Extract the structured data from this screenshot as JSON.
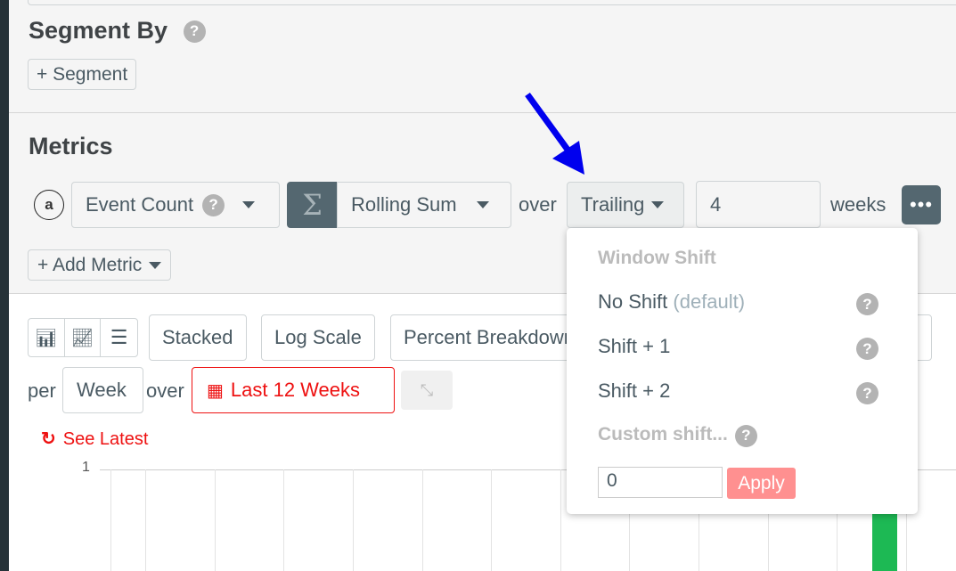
{
  "segment": {
    "title": "Segment By",
    "add_label": "+ Segment"
  },
  "metrics": {
    "title": "Metrics",
    "letter": "a",
    "event": "Event Count",
    "agg_icon": "Σ",
    "agg": "Rolling Sum",
    "over": "over",
    "window": "Trailing",
    "window_count": "4",
    "unit": "weeks",
    "add_metric": "+ Add Metric"
  },
  "toolbar": {
    "stacked": "Stacked",
    "log_scale": "Log Scale",
    "percent": "Percent Breakdown",
    "per": "per",
    "interval": "Week",
    "over": "over",
    "range": "Last 12 Weeks",
    "see_latest": "See Latest"
  },
  "chart": {
    "y_tick": "1",
    "bar_color": "#1db954"
  },
  "dropdown": {
    "header": "Window Shift",
    "items": [
      {
        "label": "No Shift",
        "note": "(default)"
      },
      {
        "label": "Shift + 1"
      },
      {
        "label": "Shift + 2"
      }
    ],
    "custom": "Custom shift...",
    "custom_value": "0",
    "apply": "Apply"
  },
  "colors": {
    "accent_red": "#ee1111",
    "sidebar": "#263238",
    "annotation_arrow": "#0000ee"
  }
}
